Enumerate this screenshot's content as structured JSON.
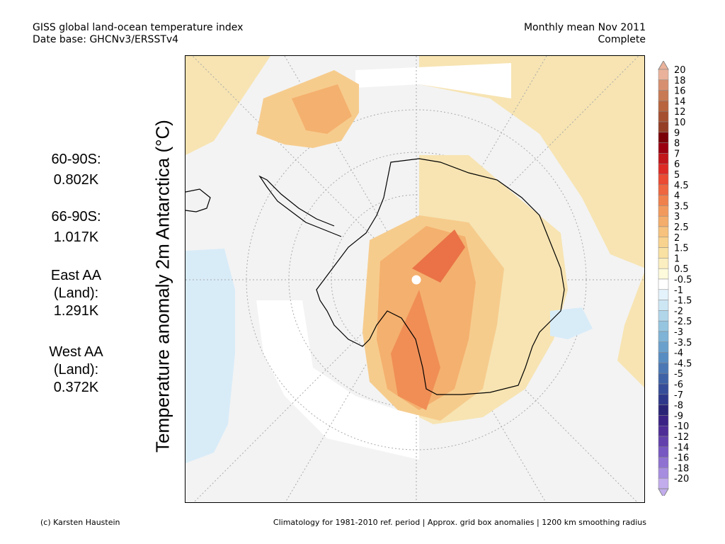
{
  "header": {
    "title": "GISS global land-ocean temperature index",
    "database": "Date base: GHCNv3/ERSSTv4",
    "period": "Monthly mean Nov 2011",
    "status": "Complete"
  },
  "stats": [
    {
      "label": "60-90S:",
      "value": "0.802K"
    },
    {
      "label": "66-90S:",
      "value": "1.017K"
    },
    {
      "label": "East AA",
      "label2": "(Land):",
      "value": "1.291K"
    },
    {
      "label": "West AA",
      "label2": "(Land):",
      "value": "0.372K"
    }
  ],
  "map": {
    "ylabel": "Temperature anomaly 2m Antarctica (°C)",
    "projection": "south-polar-stereographic",
    "colors": {
      "light_warm": "#f7e4b2",
      "warm": "#f6cc8d",
      "mid_warm": "#f4b06e",
      "hot": "#f08e56",
      "hotter": "#ea7246",
      "cool": "#d8ecf8",
      "ocean_no_data": "#f3f3f3",
      "missing": "#ffffff"
    }
  },
  "colorbar": {
    "labels": [
      "20",
      "18",
      "16",
      "14",
      "12",
      "10",
      "9",
      "8",
      "7",
      "6",
      "5",
      "4.5",
      "4",
      "3.5",
      "3",
      "2.5",
      "2",
      "1.5",
      "1",
      "0.5",
      "-0.5",
      "-1",
      "-1.5",
      "-2",
      "-2.5",
      "-3",
      "-3.5",
      "-4",
      "-4.5",
      "-5",
      "-6",
      "-7",
      "-8",
      "-9",
      "-10",
      "-12",
      "-14",
      "-16",
      "-18",
      "-20"
    ],
    "colors": [
      "#eab29a",
      "#d7906f",
      "#c87a54",
      "#b8643e",
      "#a55030",
      "#943e26",
      "#7a0007",
      "#9a0010",
      "#c1161b",
      "#dd2a25",
      "#eb4a33",
      "#ee6740",
      "#f0814d",
      "#f29a5d",
      "#f4ad6b",
      "#f6c27d",
      "#f8d38f",
      "#f9e1a3",
      "#fbeec0",
      "#fefadc",
      "#ffffff",
      "#e4f2fb",
      "#cde6f4",
      "#b1d6ea",
      "#96c5e0",
      "#7fb4d7",
      "#6aa1cc",
      "#588dc2",
      "#4b78b4",
      "#3f62a6",
      "#364d99",
      "#2e388a",
      "#2a2477",
      "#3a2385",
      "#4e2d97",
      "#6241ac",
      "#7757c1",
      "#8f71d1",
      "#a78ddf",
      "#c2acec"
    ]
  },
  "footer": {
    "credit": "(c) Karsten Haustein",
    "note": "Climatology for 1981-2010 ref. period | Approx. grid box anomalies | 1200 km smoothing radius"
  }
}
